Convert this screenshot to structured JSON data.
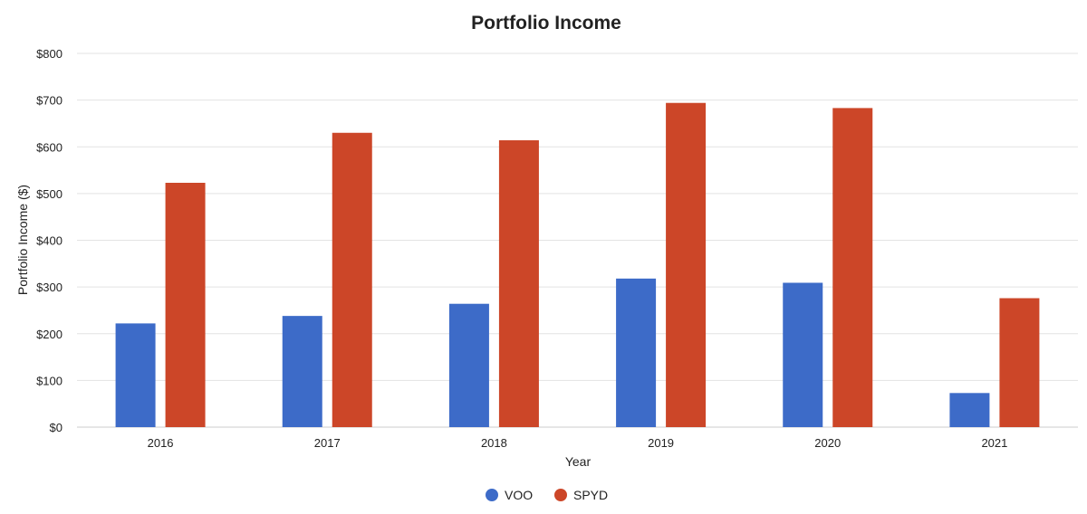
{
  "chart_data": {
    "type": "bar",
    "title": "Portfolio Income",
    "xlabel": "Year",
    "ylabel": "Portfolio Income ($)",
    "categories": [
      "2016",
      "2017",
      "2018",
      "2019",
      "2020",
      "2021"
    ],
    "series": [
      {
        "name": "VOO",
        "color": "#3d6bc8",
        "values": [
          222,
          238,
          264,
          318,
          309,
          73
        ]
      },
      {
        "name": "SPYD",
        "color": "#cc4628",
        "values": [
          523,
          630,
          614,
          694,
          683,
          276
        ]
      }
    ],
    "ylim": [
      0,
      800
    ],
    "yticks": [
      0,
      100,
      200,
      300,
      400,
      500,
      600,
      700,
      800
    ],
    "ytick_labels": [
      "$0",
      "$100",
      "$200",
      "$300",
      "$400",
      "$500",
      "$600",
      "$700",
      "$800"
    ],
    "grid": true,
    "legend_position": "bottom-center"
  }
}
